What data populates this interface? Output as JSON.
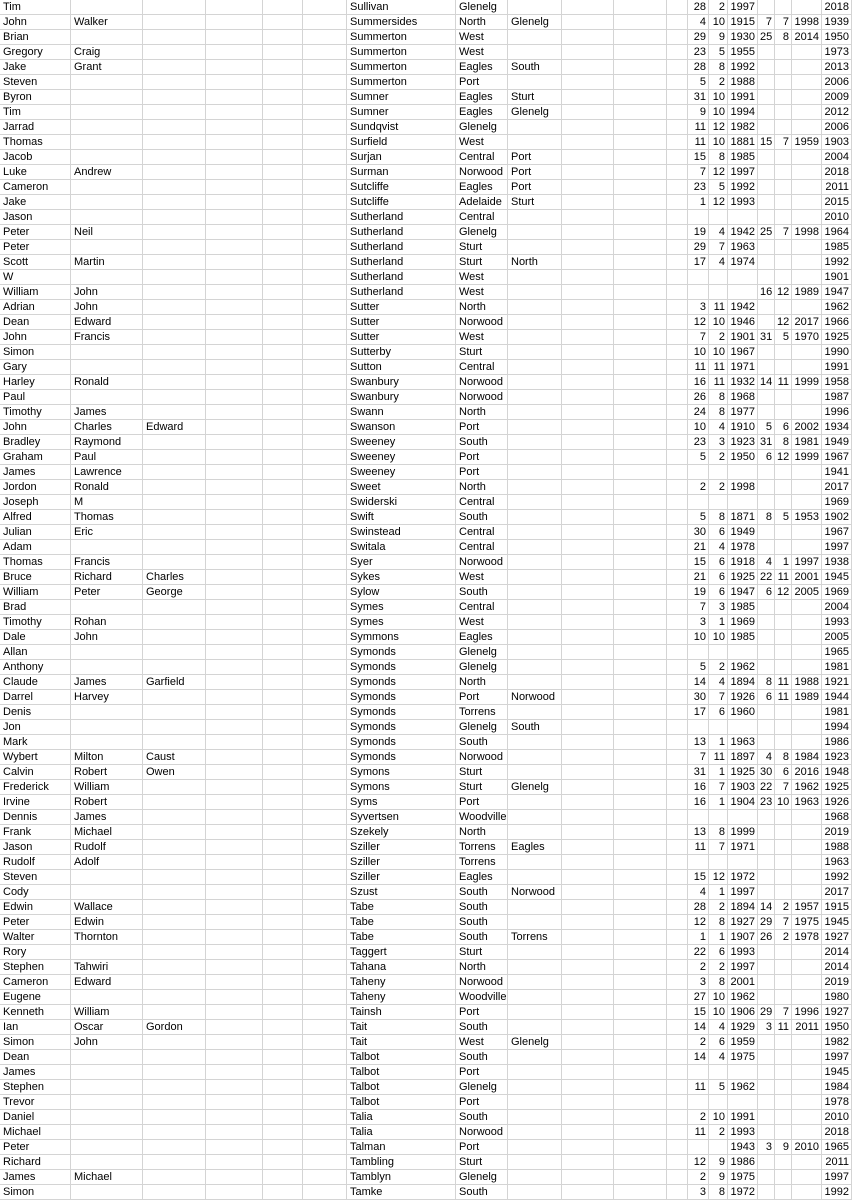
{
  "columns": [
    "first_name",
    "middle_name",
    "third_name",
    "",
    "",
    "",
    "surname",
    "club",
    "club_2",
    "",
    "",
    "",
    "birth_day",
    "birth_month",
    "birth_year",
    "death_day",
    "death_month",
    "death_year",
    "year"
  ],
  "rows": [
    [
      "Tim",
      "",
      "",
      "Sullivan",
      "Glenelg",
      "",
      "28",
      "2",
      "1997",
      "",
      "",
      "",
      "2018"
    ],
    [
      "John",
      "Walker",
      "",
      "Summersides",
      "North",
      "Glenelg",
      "4",
      "10",
      "1915",
      "7",
      "7",
      "1998",
      "1939"
    ],
    [
      "Brian",
      "",
      "",
      "Summerton",
      "West",
      "",
      "29",
      "9",
      "1930",
      "25",
      "8",
      "2014",
      "1950"
    ],
    [
      "Gregory",
      "Craig",
      "",
      "Summerton",
      "West",
      "",
      "23",
      "5",
      "1955",
      "",
      "",
      "",
      "1973"
    ],
    [
      "Jake",
      "Grant",
      "",
      "Summerton",
      "Eagles",
      "South",
      "28",
      "8",
      "1992",
      "",
      "",
      "",
      "2013"
    ],
    [
      "Steven",
      "",
      "",
      "Summerton",
      "Port",
      "",
      "5",
      "2",
      "1988",
      "",
      "",
      "",
      "2006"
    ],
    [
      "Byron",
      "",
      "",
      "Sumner",
      "Eagles",
      "Sturt",
      "31",
      "10",
      "1991",
      "",
      "",
      "",
      "2009"
    ],
    [
      "Tim",
      "",
      "",
      "Sumner",
      "Eagles",
      "Glenelg",
      "9",
      "10",
      "1994",
      "",
      "",
      "",
      "2012"
    ],
    [
      "Jarrad",
      "",
      "",
      "Sundqvist",
      "Glenelg",
      "",
      "11",
      "12",
      "1982",
      "",
      "",
      "",
      "2006"
    ],
    [
      "Thomas",
      "",
      "",
      "Surfield",
      "West",
      "",
      "11",
      "10",
      "1881",
      "15",
      "7",
      "1959",
      "1903"
    ],
    [
      "Jacob",
      "",
      "",
      "Surjan",
      "Central",
      "Port",
      "15",
      "8",
      "1985",
      "",
      "",
      "",
      "2004"
    ],
    [
      "Luke",
      "Andrew",
      "",
      "Surman",
      "Norwood",
      "Port",
      "7",
      "12",
      "1997",
      "",
      "",
      "",
      "2018"
    ],
    [
      "Cameron",
      "",
      "",
      "Sutcliffe",
      "Eagles",
      "Port",
      "23",
      "5",
      "1992",
      "",
      "",
      "",
      "2011"
    ],
    [
      "Jake",
      "",
      "",
      "Sutcliffe",
      "Adelaide",
      "Sturt",
      "1",
      "12",
      "1993",
      "",
      "",
      "",
      "2015"
    ],
    [
      "Jason",
      "",
      "",
      "Sutherland",
      "Central",
      "",
      "",
      "",
      "",
      "",
      "",
      "",
      "2010"
    ],
    [
      "Peter",
      "Neil",
      "",
      "Sutherland",
      "Glenelg",
      "",
      "19",
      "4",
      "1942",
      "25",
      "7",
      "1998",
      "1964"
    ],
    [
      "Peter",
      "",
      "",
      "Sutherland",
      "Sturt",
      "",
      "29",
      "7",
      "1963",
      "",
      "",
      "",
      "1985"
    ],
    [
      "Scott",
      "Martin",
      "",
      "Sutherland",
      "Sturt",
      "North",
      "17",
      "4",
      "1974",
      "",
      "",
      "",
      "1992"
    ],
    [
      "W",
      "",
      "",
      "Sutherland",
      "West",
      "",
      "",
      "",
      "",
      "",
      "",
      "",
      "1901"
    ],
    [
      "William",
      "John",
      "",
      "Sutherland",
      "West",
      "",
      "",
      "",
      "",
      "16",
      "12",
      "1989",
      "1947"
    ],
    [
      "Adrian",
      "John",
      "",
      "Sutter",
      "North",
      "",
      "3",
      "11",
      "1942",
      "",
      "",
      "",
      "1962"
    ],
    [
      "Dean",
      "Edward",
      "",
      "Sutter",
      "Norwood",
      "",
      "12",
      "10",
      "1946",
      "",
      "12",
      "2017",
      "1966"
    ],
    [
      "John",
      "Francis",
      "",
      "Sutter",
      "West",
      "",
      "7",
      "2",
      "1901",
      "31",
      "5",
      "1970",
      "1925"
    ],
    [
      "Simon",
      "",
      "",
      "Sutterby",
      "Sturt",
      "",
      "10",
      "10",
      "1967",
      "",
      "",
      "",
      "1990"
    ],
    [
      "Gary",
      "",
      "",
      "Sutton",
      "Central",
      "",
      "11",
      "11",
      "1971",
      "",
      "",
      "",
      "1991"
    ],
    [
      "Harley",
      "Ronald",
      "",
      "Swanbury",
      "Norwood",
      "",
      "16",
      "11",
      "1932",
      "14",
      "11",
      "1999",
      "1958"
    ],
    [
      "Paul",
      "",
      "",
      "Swanbury",
      "Norwood",
      "",
      "26",
      "8",
      "1968",
      "",
      "",
      "",
      "1987"
    ],
    [
      "Timothy",
      "James",
      "",
      "Swann",
      "North",
      "",
      "24",
      "8",
      "1977",
      "",
      "",
      "",
      "1996"
    ],
    [
      "John",
      "Charles",
      "Edward",
      "Swanson",
      "Port",
      "",
      "10",
      "4",
      "1910",
      "5",
      "6",
      "2002",
      "1934"
    ],
    [
      "Bradley",
      "Raymond",
      "",
      "Sweeney",
      "South",
      "",
      "23",
      "3",
      "1923",
      "31",
      "8",
      "1981",
      "1949"
    ],
    [
      "Graham",
      "Paul",
      "",
      "Sweeney",
      "Port",
      "",
      "5",
      "2",
      "1950",
      "6",
      "12",
      "1999",
      "1967"
    ],
    [
      "James",
      "Lawrence",
      "",
      "Sweeney",
      "Port",
      "",
      "",
      "",
      "",
      "",
      "",
      "",
      "1941"
    ],
    [
      "Jordon",
      "Ronald",
      "",
      "Sweet",
      "North",
      "",
      "2",
      "2",
      "1998",
      "",
      "",
      "",
      "2017"
    ],
    [
      "Joseph",
      "M",
      "",
      "Swiderski",
      "Central",
      "",
      "",
      "",
      "",
      "",
      "",
      "",
      "1969"
    ],
    [
      "Alfred",
      "Thomas",
      "",
      "Swift",
      "South",
      "",
      "5",
      "8",
      "1871",
      "8",
      "5",
      "1953",
      "1902"
    ],
    [
      "Julian",
      "Eric",
      "",
      "Swinstead",
      "Central",
      "",
      "30",
      "6",
      "1949",
      "",
      "",
      "",
      "1967"
    ],
    [
      "Adam",
      "",
      "",
      "Switala",
      "Central",
      "",
      "21",
      "4",
      "1978",
      "",
      "",
      "",
      "1997"
    ],
    [
      "Thomas",
      "Francis",
      "",
      "Syer",
      "Norwood",
      "",
      "15",
      "6",
      "1918",
      "4",
      "1",
      "1997",
      "1938"
    ],
    [
      "Bruce",
      "Richard",
      "Charles",
      "Sykes",
      "West",
      "",
      "21",
      "6",
      "1925",
      "22",
      "11",
      "2001",
      "1945"
    ],
    [
      "William",
      "Peter",
      "George",
      "Sylow",
      "South",
      "",
      "19",
      "6",
      "1947",
      "6",
      "12",
      "2005",
      "1969"
    ],
    [
      "Brad",
      "",
      "",
      "Symes",
      "Central",
      "",
      "7",
      "3",
      "1985",
      "",
      "",
      "",
      "2004"
    ],
    [
      "Timothy",
      "Rohan",
      "",
      "Symes",
      "West",
      "",
      "3",
      "1",
      "1969",
      "",
      "",
      "",
      "1993"
    ],
    [
      "Dale",
      "John",
      "",
      "Symmons",
      "Eagles",
      "",
      "10",
      "10",
      "1985",
      "",
      "",
      "",
      "2005"
    ],
    [
      "Allan",
      "",
      "",
      "Symonds",
      "Glenelg",
      "",
      "",
      "",
      "",
      "",
      "",
      "",
      "1965"
    ],
    [
      "Anthony",
      "",
      "",
      "Symonds",
      "Glenelg",
      "",
      "5",
      "2",
      "1962",
      "",
      "",
      "",
      "1981"
    ],
    [
      "Claude",
      "James",
      "Garfield",
      "Symonds",
      "North",
      "",
      "14",
      "4",
      "1894",
      "8",
      "11",
      "1988",
      "1921"
    ],
    [
      "Darrel",
      "Harvey",
      "",
      "Symonds",
      "Port",
      "Norwood",
      "30",
      "7",
      "1926",
      "6",
      "11",
      "1989",
      "1944"
    ],
    [
      "Denis",
      "",
      "",
      "Symonds",
      "Torrens",
      "",
      "17",
      "6",
      "1960",
      "",
      "",
      "",
      "1981"
    ],
    [
      "Jon",
      "",
      "",
      "Symonds",
      "Glenelg",
      "South",
      "",
      "",
      "",
      "",
      "",
      "",
      "1994"
    ],
    [
      "Mark",
      "",
      "",
      "Symonds",
      "South",
      "",
      "13",
      "1",
      "1963",
      "",
      "",
      "",
      "1986"
    ],
    [
      "Wybert",
      "Milton",
      "Caust",
      "Symonds",
      "Norwood",
      "",
      "7",
      "11",
      "1897",
      "4",
      "8",
      "1984",
      "1923"
    ],
    [
      "Calvin",
      "Robert",
      "Owen",
      "Symons",
      "Sturt",
      "",
      "31",
      "1",
      "1925",
      "30",
      "6",
      "2016",
      "1948"
    ],
    [
      "Frederick",
      "William",
      "",
      "Symons",
      "Sturt",
      "Glenelg",
      "16",
      "7",
      "1903",
      "22",
      "7",
      "1962",
      "1925"
    ],
    [
      "Irvine",
      "Robert",
      "",
      "Syms",
      "Port",
      "",
      "16",
      "1",
      "1904",
      "23",
      "10",
      "1963",
      "1926"
    ],
    [
      "Dennis",
      "James",
      "",
      "Syvertsen",
      "Woodville",
      "",
      "",
      "",
      "",
      "",
      "",
      "",
      "1968"
    ],
    [
      "Frank",
      "Michael",
      "",
      "Szekely",
      "North",
      "",
      "13",
      "8",
      "1999",
      "",
      "",
      "",
      "2019"
    ],
    [
      "Jason",
      "Rudolf",
      "",
      "Sziller",
      "Torrens",
      "Eagles",
      "11",
      "7",
      "1971",
      "",
      "",
      "",
      "1988"
    ],
    [
      "Rudolf",
      "Adolf",
      "",
      "Sziller",
      "Torrens",
      "",
      "",
      "",
      "",
      "",
      "",
      "",
      "1963"
    ],
    [
      "Steven",
      "",
      "",
      "Sziller",
      "Eagles",
      "",
      "15",
      "12",
      "1972",
      "",
      "",
      "",
      "1992"
    ],
    [
      "Cody",
      "",
      "",
      "Szust",
      "South",
      "Norwood",
      "4",
      "1",
      "1997",
      "",
      "",
      "",
      "2017"
    ],
    [
      "Edwin",
      "Wallace",
      "",
      "Tabe",
      "South",
      "",
      "28",
      "2",
      "1894",
      "14",
      "2",
      "1957",
      "1915"
    ],
    [
      "Peter",
      "Edwin",
      "",
      "Tabe",
      "South",
      "",
      "12",
      "8",
      "1927",
      "29",
      "7",
      "1975",
      "1945"
    ],
    [
      "Walter",
      "Thornton",
      "",
      "Tabe",
      "South",
      "Torrens",
      "1",
      "1",
      "1907",
      "26",
      "2",
      "1978",
      "1927"
    ],
    [
      "Rory",
      "",
      "",
      "Taggert",
      "Sturt",
      "",
      "22",
      "6",
      "1993",
      "",
      "",
      "",
      "2014"
    ],
    [
      "Stephen",
      "Tahwiri",
      "",
      "Tahana",
      "North",
      "",
      "2",
      "2",
      "1997",
      "",
      "",
      "",
      "2014"
    ],
    [
      "Cameron",
      "Edward",
      "",
      "Taheny",
      "Norwood",
      "",
      "3",
      "8",
      "2001",
      "",
      "",
      "",
      "2019"
    ],
    [
      "Eugene",
      "",
      "",
      "Taheny",
      "Woodville",
      "",
      "27",
      "10",
      "1962",
      "",
      "",
      "",
      "1980"
    ],
    [
      "Kenneth",
      "William",
      "",
      "Tainsh",
      "Port",
      "",
      "15",
      "10",
      "1906",
      "29",
      "7",
      "1996",
      "1927"
    ],
    [
      "Ian",
      "Oscar",
      "Gordon",
      "Tait",
      "South",
      "",
      "14",
      "4",
      "1929",
      "3",
      "11",
      "2011",
      "1950"
    ],
    [
      "Simon",
      "John",
      "",
      "Tait",
      "West",
      "Glenelg",
      "2",
      "6",
      "1959",
      "",
      "",
      "",
      "1982"
    ],
    [
      "Dean",
      "",
      "",
      "Talbot",
      "South",
      "",
      "14",
      "4",
      "1975",
      "",
      "",
      "",
      "1997"
    ],
    [
      "James",
      "",
      "",
      "Talbot",
      "Port",
      "",
      "",
      "",
      "",
      "",
      "",
      "",
      "1945"
    ],
    [
      "Stephen",
      "",
      "",
      "Talbot",
      "Glenelg",
      "",
      "11",
      "5",
      "1962",
      "",
      "",
      "",
      "1984"
    ],
    [
      "Trevor",
      "",
      "",
      "Talbot",
      "Port",
      "",
      "",
      "",
      "",
      "",
      "",
      "",
      "1978"
    ],
    [
      "Daniel",
      "",
      "",
      "Talia",
      "South",
      "",
      "2",
      "10",
      "1991",
      "",
      "",
      "",
      "2010"
    ],
    [
      "Michael",
      "",
      "",
      "Talia",
      "Norwood",
      "",
      "11",
      "2",
      "1993",
      "",
      "",
      "",
      "2018"
    ],
    [
      "Peter",
      "",
      "",
      "Talman",
      "Port",
      "",
      "",
      "",
      "1943",
      "3",
      "9",
      "2010",
      "1965"
    ],
    [
      "Richard",
      "",
      "",
      "Tambling",
      "Sturt",
      "",
      "12",
      "9",
      "1986",
      "",
      "",
      "",
      "2011"
    ],
    [
      "James",
      "Michael",
      "",
      "Tamblyn",
      "Glenelg",
      "",
      "2",
      "9",
      "1975",
      "",
      "",
      "",
      "1997"
    ],
    [
      "Simon",
      "",
      "",
      "Tamke",
      "South",
      "",
      "3",
      "8",
      "1972",
      "",
      "",
      "",
      "1992"
    ]
  ]
}
